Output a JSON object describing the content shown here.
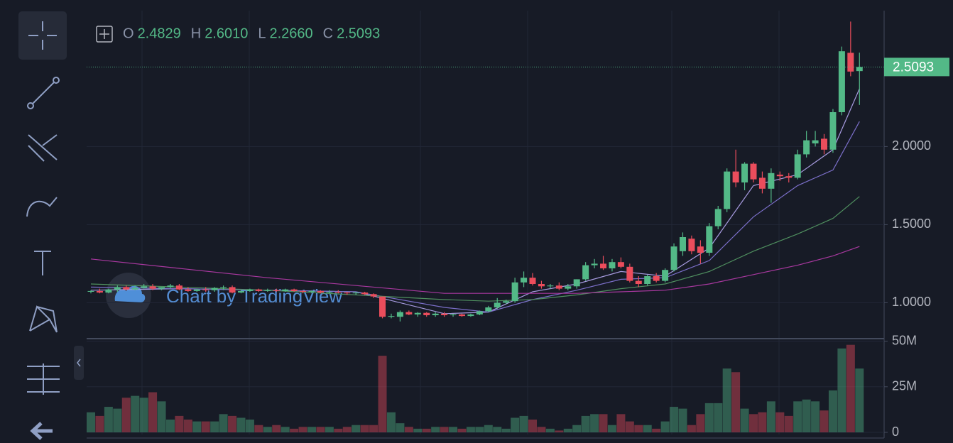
{
  "chart_data": {
    "type": "candlestick",
    "legend": [
      {
        "key": "O",
        "text": "2.4829"
      },
      {
        "key": "H",
        "text": "2.6010"
      },
      {
        "key": "L",
        "text": "2.2660"
      },
      {
        "key": "C",
        "text": "2.5093"
      }
    ],
    "last_price_label": "2.5093",
    "watermark": "Chart by TradingView",
    "up_color": "#53b987",
    "down_color": "#eb4d5c",
    "ylim": [
      0.77,
      2.87
    ],
    "yticks": [
      {
        "value": 1,
        "label": "1.0000"
      },
      {
        "value": 1.5,
        "label": "1.5000"
      },
      {
        "value": 2,
        "label": "2.0000"
      }
    ],
    "grid": true,
    "candles": [
      {
        "o": 1.07,
        "h": 1.08,
        "l": 1.06,
        "c": 1.075
      },
      {
        "o": 1.075,
        "h": 1.09,
        "l": 1.06,
        "c": 1.065
      },
      {
        "o": 1.065,
        "h": 1.09,
        "l": 1.06,
        "c": 1.085
      },
      {
        "o": 1.085,
        "h": 1.11,
        "l": 1.07,
        "c": 1.1
      },
      {
        "o": 1.1,
        "h": 1.11,
        "l": 1.08,
        "c": 1.085
      },
      {
        "o": 1.085,
        "h": 1.11,
        "l": 1.08,
        "c": 1.095
      },
      {
        "o": 1.095,
        "h": 1.12,
        "l": 1.09,
        "c": 1.105
      },
      {
        "o": 1.105,
        "h": 1.12,
        "l": 1.08,
        "c": 1.09
      },
      {
        "o": 1.09,
        "h": 1.1,
        "l": 1.08,
        "c": 1.1
      },
      {
        "o": 1.1,
        "h": 1.12,
        "l": 1.09,
        "c": 1.11
      },
      {
        "o": 1.11,
        "h": 1.12,
        "l": 1.08,
        "c": 1.085
      },
      {
        "o": 1.085,
        "h": 1.1,
        "l": 1.07,
        "c": 1.075
      },
      {
        "o": 1.075,
        "h": 1.09,
        "l": 1.07,
        "c": 1.085
      },
      {
        "o": 1.085,
        "h": 1.1,
        "l": 1.07,
        "c": 1.08
      },
      {
        "o": 1.08,
        "h": 1.1,
        "l": 1.07,
        "c": 1.095
      },
      {
        "o": 1.095,
        "h": 1.11,
        "l": 1.08,
        "c": 1.1
      },
      {
        "o": 1.1,
        "h": 1.11,
        "l": 1.06,
        "c": 1.065
      },
      {
        "o": 1.065,
        "h": 1.08,
        "l": 1.06,
        "c": 1.075
      },
      {
        "o": 1.075,
        "h": 1.09,
        "l": 1.07,
        "c": 1.085
      },
      {
        "o": 1.085,
        "h": 1.09,
        "l": 1.07,
        "c": 1.075
      },
      {
        "o": 1.075,
        "h": 1.09,
        "l": 1.07,
        "c": 1.08
      },
      {
        "o": 1.08,
        "h": 1.09,
        "l": 1.07,
        "c": 1.075
      },
      {
        "o": 1.075,
        "h": 1.09,
        "l": 1.07,
        "c": 1.085
      },
      {
        "o": 1.085,
        "h": 1.09,
        "l": 1.07,
        "c": 1.075
      },
      {
        "o": 1.075,
        "h": 1.08,
        "l": 1.06,
        "c": 1.07
      },
      {
        "o": 1.07,
        "h": 1.08,
        "l": 1.06,
        "c": 1.075
      },
      {
        "o": 1.075,
        "h": 1.08,
        "l": 1.06,
        "c": 1.065
      },
      {
        "o": 1.065,
        "h": 1.08,
        "l": 1.06,
        "c": 1.07
      },
      {
        "o": 1.07,
        "h": 1.08,
        "l": 1.06,
        "c": 1.065
      },
      {
        "o": 1.065,
        "h": 1.07,
        "l": 1.05,
        "c": 1.06
      },
      {
        "o": 1.06,
        "h": 1.07,
        "l": 1.05,
        "c": 1.065
      },
      {
        "o": 1.065,
        "h": 1.07,
        "l": 1.05,
        "c": 1.055
      },
      {
        "o": 1.055,
        "h": 1.06,
        "l": 1.03,
        "c": 1.04
      },
      {
        "o": 1.04,
        "h": 1.04,
        "l": 0.9,
        "c": 0.91
      },
      {
        "o": 0.91,
        "h": 0.93,
        "l": 0.9,
        "c": 0.915
      },
      {
        "o": 0.91,
        "h": 0.95,
        "l": 0.88,
        "c": 0.94
      },
      {
        "o": 0.94,
        "h": 0.95,
        "l": 0.92,
        "c": 0.925
      },
      {
        "o": 0.925,
        "h": 0.94,
        "l": 0.91,
        "c": 0.935
      },
      {
        "o": 0.935,
        "h": 0.94,
        "l": 0.91,
        "c": 0.92
      },
      {
        "o": 0.92,
        "h": 0.94,
        "l": 0.91,
        "c": 0.93
      },
      {
        "o": 0.93,
        "h": 0.94,
        "l": 0.91,
        "c": 0.92
      },
      {
        "o": 0.92,
        "h": 0.93,
        "l": 0.91,
        "c": 0.925
      },
      {
        "o": 0.925,
        "h": 0.93,
        "l": 0.91,
        "c": 0.915
      },
      {
        "o": 0.915,
        "h": 0.93,
        "l": 0.91,
        "c": 0.925
      },
      {
        "o": 0.925,
        "h": 0.95,
        "l": 0.92,
        "c": 0.945
      },
      {
        "o": 0.945,
        "h": 0.98,
        "l": 0.94,
        "c": 0.97
      },
      {
        "o": 0.97,
        "h": 1.03,
        "l": 0.96,
        "c": 1.0
      },
      {
        "o": 1.0,
        "h": 1.02,
        "l": 0.99,
        "c": 1.01
      },
      {
        "o": 1.01,
        "h": 1.16,
        "l": 1.0,
        "c": 1.13
      },
      {
        "o": 1.13,
        "h": 1.2,
        "l": 1.1,
        "c": 1.16
      },
      {
        "o": 1.16,
        "h": 1.19,
        "l": 1.11,
        "c": 1.12
      },
      {
        "o": 1.12,
        "h": 1.14,
        "l": 1.09,
        "c": 1.105
      },
      {
        "o": 1.105,
        "h": 1.12,
        "l": 1.09,
        "c": 1.11
      },
      {
        "o": 1.11,
        "h": 1.13,
        "l": 1.08,
        "c": 1.09
      },
      {
        "o": 1.09,
        "h": 1.12,
        "l": 1.08,
        "c": 1.105
      },
      {
        "o": 1.105,
        "h": 1.15,
        "l": 1.09,
        "c": 1.15
      },
      {
        "o": 1.15,
        "h": 1.26,
        "l": 1.14,
        "c": 1.24
      },
      {
        "o": 1.24,
        "h": 1.28,
        "l": 1.22,
        "c": 1.25
      },
      {
        "o": 1.25,
        "h": 1.3,
        "l": 1.21,
        "c": 1.22
      },
      {
        "o": 1.22,
        "h": 1.28,
        "l": 1.2,
        "c": 1.26
      },
      {
        "o": 1.26,
        "h": 1.29,
        "l": 1.22,
        "c": 1.23
      },
      {
        "o": 1.23,
        "h": 1.25,
        "l": 1.13,
        "c": 1.14
      },
      {
        "o": 1.14,
        "h": 1.17,
        "l": 1.1,
        "c": 1.12
      },
      {
        "o": 1.12,
        "h": 1.18,
        "l": 1.11,
        "c": 1.17
      },
      {
        "o": 1.17,
        "h": 1.19,
        "l": 1.13,
        "c": 1.14
      },
      {
        "o": 1.14,
        "h": 1.22,
        "l": 1.13,
        "c": 1.21
      },
      {
        "o": 1.21,
        "h": 1.38,
        "l": 1.2,
        "c": 1.36
      },
      {
        "o": 1.33,
        "h": 1.45,
        "l": 1.3,
        "c": 1.42
      },
      {
        "o": 1.41,
        "h": 1.43,
        "l": 1.31,
        "c": 1.33
      },
      {
        "o": 1.36,
        "h": 1.4,
        "l": 1.25,
        "c": 1.32
      },
      {
        "o": 1.32,
        "h": 1.51,
        "l": 1.3,
        "c": 1.49
      },
      {
        "o": 1.49,
        "h": 1.62,
        "l": 1.47,
        "c": 1.6
      },
      {
        "o": 1.6,
        "h": 1.86,
        "l": 1.58,
        "c": 1.84
      },
      {
        "o": 1.84,
        "h": 1.98,
        "l": 1.74,
        "c": 1.77
      },
      {
        "o": 1.77,
        "h": 1.9,
        "l": 1.72,
        "c": 1.89
      },
      {
        "o": 1.89,
        "h": 1.9,
        "l": 1.77,
        "c": 1.79
      },
      {
        "o": 1.8,
        "h": 1.84,
        "l": 1.7,
        "c": 1.73
      },
      {
        "o": 1.73,
        "h": 1.86,
        "l": 1.64,
        "c": 1.83
      },
      {
        "o": 1.82,
        "h": 1.84,
        "l": 1.78,
        "c": 1.81
      },
      {
        "o": 1.81,
        "h": 1.83,
        "l": 1.77,
        "c": 1.8
      },
      {
        "o": 1.8,
        "h": 1.98,
        "l": 1.79,
        "c": 1.95
      },
      {
        "o": 1.95,
        "h": 2.1,
        "l": 1.93,
        "c": 2.04
      },
      {
        "o": 2.02,
        "h": 2.1,
        "l": 2.0,
        "c": 2.04
      },
      {
        "o": 2.05,
        "h": 2.08,
        "l": 1.95,
        "c": 1.98
      },
      {
        "o": 1.98,
        "h": 2.24,
        "l": 1.96,
        "c": 2.22
      },
      {
        "o": 2.22,
        "h": 2.64,
        "l": 2.2,
        "c": 2.61
      },
      {
        "o": 2.6,
        "h": 2.8,
        "l": 2.45,
        "c": 2.48
      },
      {
        "o": 2.4829,
        "h": 2.601,
        "l": 2.266,
        "c": 2.5093
      }
    ],
    "volume": [
      11,
      9,
      14,
      13,
      19,
      20,
      19,
      22,
      17,
      7,
      9,
      7,
      6,
      6,
      6,
      10,
      9,
      8,
      7,
      4,
      3,
      4,
      3,
      2,
      3,
      3,
      3,
      3,
      2,
      3,
      4,
      4,
      4,
      42,
      11,
      5,
      3,
      2,
      2,
      3,
      3,
      3,
      2,
      3,
      3,
      4,
      3,
      2,
      8,
      9,
      7,
      3,
      2,
      1,
      2,
      4,
      9,
      10,
      10,
      4,
      10,
      6,
      4,
      4,
      2,
      6,
      14,
      13,
      4,
      10,
      16,
      16,
      35,
      33,
      13,
      10,
      11,
      17,
      11,
      9,
      17,
      18,
      17,
      12,
      23,
      46,
      48,
      35
    ],
    "vlim": [
      0,
      51
    ],
    "vticks": [
      0,
      {
        "value": 25,
        "label": "25M"
      },
      {
        "value": 50,
        "label": "50M"
      }
    ],
    "lines": [
      {
        "color": "#a79be0",
        "x": [
          0,
          10,
          20,
          30,
          40,
          45,
          50,
          55,
          60,
          65,
          70,
          75,
          80,
          84,
          87
        ],
        "values": [
          1.08,
          1.09,
          1.08,
          1.07,
          0.93,
          0.94,
          1.07,
          1.12,
          1.2,
          1.17,
          1.35,
          1.75,
          1.82,
          1.98,
          2.37
        ]
      },
      {
        "color": "#7b6fc9",
        "x": [
          0,
          10,
          20,
          30,
          40,
          45,
          50,
          55,
          60,
          65,
          70,
          75,
          80,
          84,
          87
        ],
        "values": [
          1.1,
          1.09,
          1.08,
          1.07,
          0.97,
          0.94,
          1.02,
          1.08,
          1.15,
          1.16,
          1.27,
          1.55,
          1.75,
          1.85,
          2.16
        ]
      },
      {
        "color": "#4f8f5f",
        "x": [
          0,
          10,
          20,
          30,
          40,
          45,
          50,
          55,
          60,
          65,
          70,
          75,
          80,
          84,
          87
        ],
        "values": [
          1.12,
          1.1,
          1.08,
          1.05,
          1.02,
          1.01,
          1.02,
          1.05,
          1.09,
          1.12,
          1.2,
          1.33,
          1.44,
          1.54,
          1.68
        ]
      },
      {
        "color": "#a8389f",
        "x": [
          0,
          10,
          20,
          30,
          40,
          45,
          50,
          55,
          60,
          65,
          70,
          75,
          80,
          84,
          87
        ],
        "values": [
          1.28,
          1.22,
          1.16,
          1.11,
          1.06,
          1.06,
          1.06,
          1.06,
          1.07,
          1.08,
          1.12,
          1.18,
          1.24,
          1.3,
          1.36
        ]
      }
    ]
  }
}
